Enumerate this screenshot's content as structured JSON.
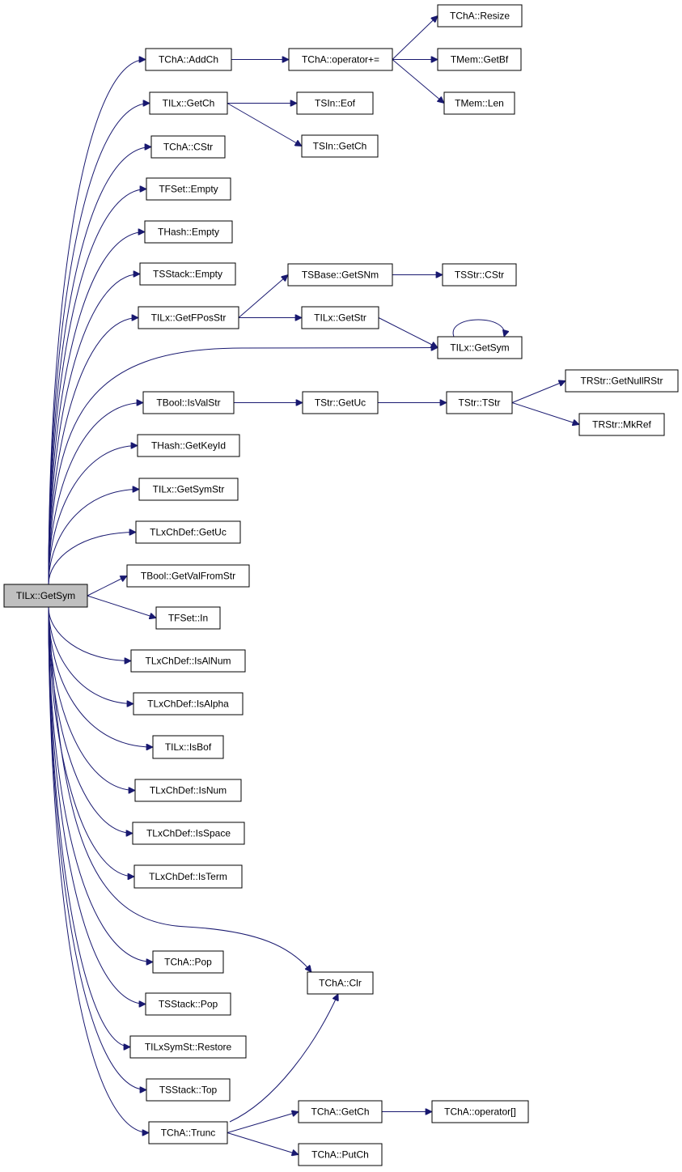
{
  "nodes": [
    {
      "label": "TILx::GetSym"
    },
    {
      "label": "TChA::AddCh"
    },
    {
      "label": "TILx::GetCh"
    },
    {
      "label": "TChA::CStr"
    },
    {
      "label": "TFSet::Empty"
    },
    {
      "label": "THash::Empty"
    },
    {
      "label": "TSStack::Empty"
    },
    {
      "label": "TILx::GetFPosStr"
    },
    {
      "label": "TBool::IsValStr"
    },
    {
      "label": "THash::GetKeyId"
    },
    {
      "label": "TILx::GetSymStr"
    },
    {
      "label": "TLxChDef::GetUc"
    },
    {
      "label": "TBool::GetValFromStr"
    },
    {
      "label": "TFSet::In"
    },
    {
      "label": "TLxChDef::IsAlNum"
    },
    {
      "label": "TLxChDef::IsAlpha"
    },
    {
      "label": "TILx::IsBof"
    },
    {
      "label": "TLxChDef::IsNum"
    },
    {
      "label": "TLxChDef::IsSpace"
    },
    {
      "label": "TLxChDef::IsTerm"
    },
    {
      "label": "TChA::Pop"
    },
    {
      "label": "TSStack::Pop"
    },
    {
      "label": "TILxSymSt::Restore"
    },
    {
      "label": "TSStack::Top"
    },
    {
      "label": "TChA::Trunc"
    },
    {
      "label": "TChA::operator+="
    },
    {
      "label": "TSIn::Eof"
    },
    {
      "label": "TSIn::GetCh"
    },
    {
      "label": "TSBase::GetSNm"
    },
    {
      "label": "TILx::GetStr"
    },
    {
      "label": "TStr::GetUc"
    },
    {
      "label": "TChA::Clr"
    },
    {
      "label": "TChA::GetCh"
    },
    {
      "label": "TChA::PutCh"
    },
    {
      "label": "TChA::Resize"
    },
    {
      "label": "TMem::GetBf"
    },
    {
      "label": "TMem::Len"
    },
    {
      "label": "TSStr::CStr"
    },
    {
      "label": "TILx::GetSym"
    },
    {
      "label": "TStr::TStr"
    },
    {
      "label": "TChA::operator[]"
    },
    {
      "label": "TRStr::GetNullRStr"
    },
    {
      "label": "TRStr::MkRef"
    }
  ]
}
